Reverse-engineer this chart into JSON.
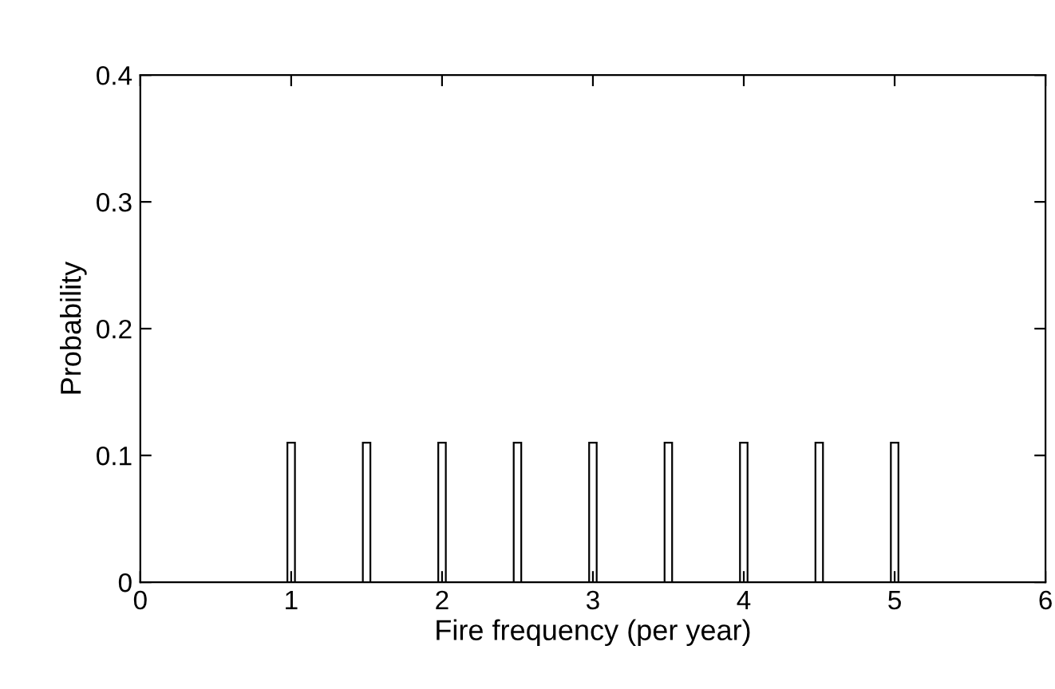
{
  "chart_data": {
    "type": "bar",
    "xlabel": "Fire frequency (per year)",
    "ylabel": "Probability",
    "x": [
      1,
      1.5,
      2,
      2.5,
      3,
      3.5,
      4,
      4.5,
      5
    ],
    "values": [
      0.11,
      0.11,
      0.11,
      0.11,
      0.11,
      0.11,
      0.11,
      0.11,
      0.11
    ],
    "color": "#ffffff",
    "xlim": [
      0,
      6
    ],
    "xticks": [
      0,
      1,
      2,
      3,
      4,
      5,
      6
    ],
    "ylim": [
      0,
      0.4
    ],
    "yticks": [
      0,
      0.1,
      0.2,
      0.3,
      0.4
    ],
    "grid": false
  }
}
